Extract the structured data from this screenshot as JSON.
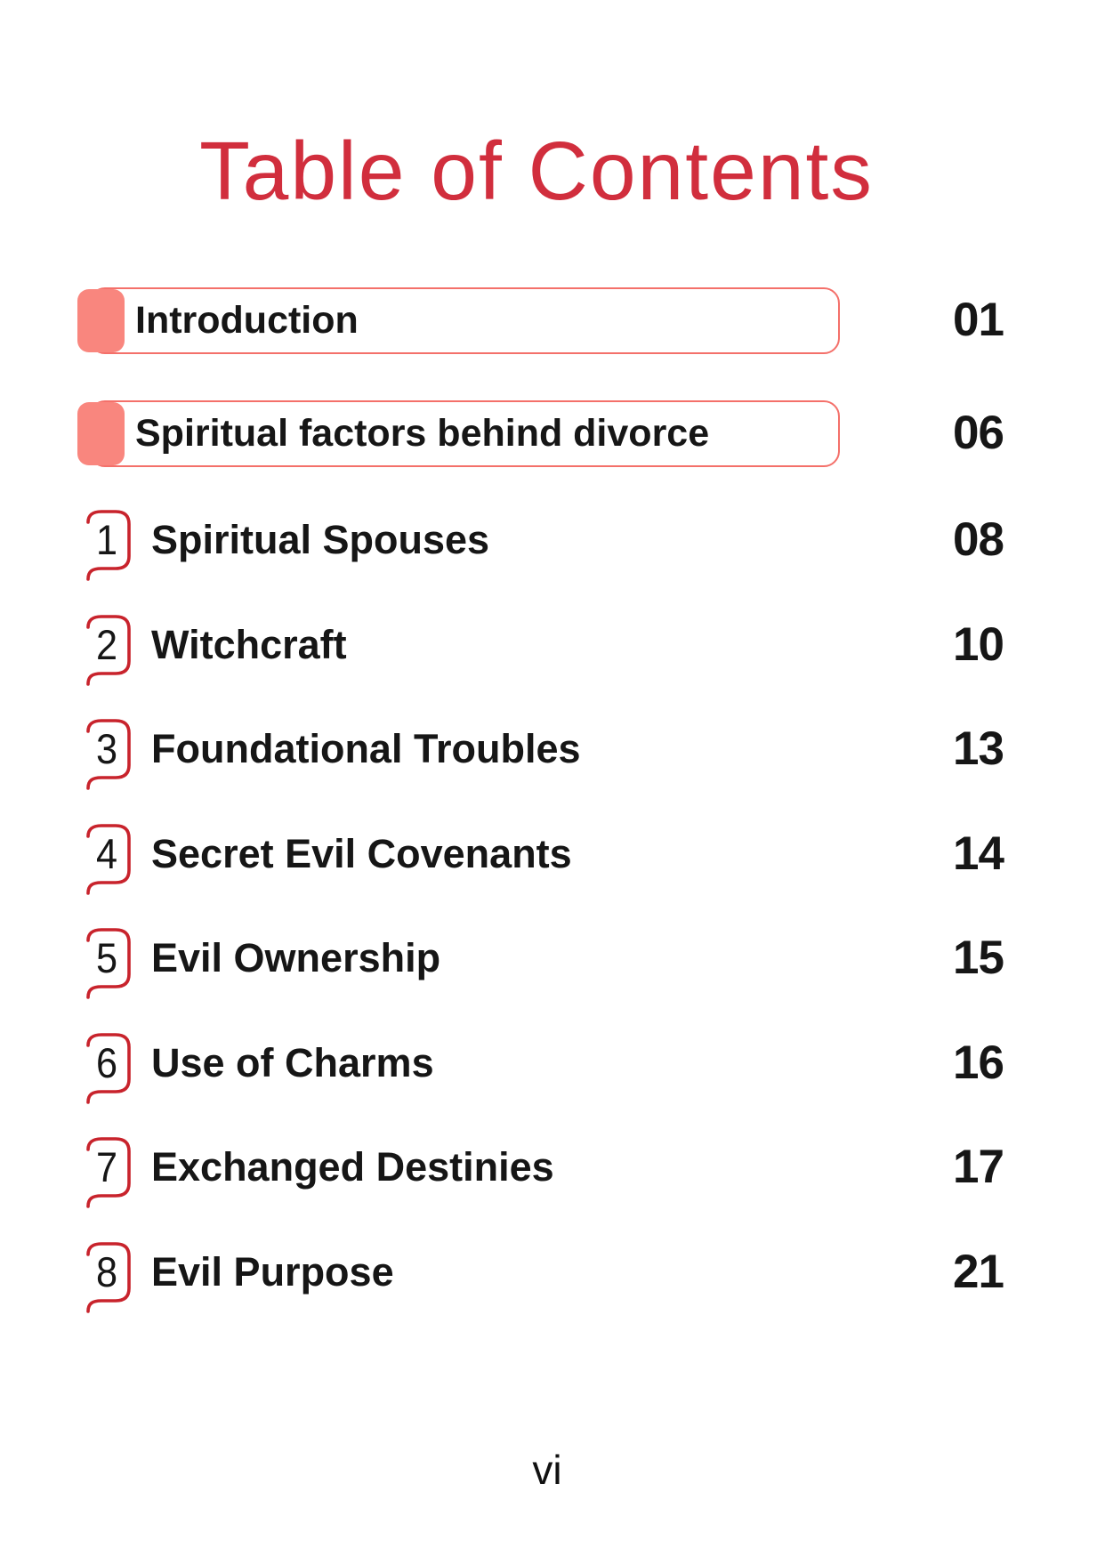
{
  "page": {
    "title": "Table of Contents",
    "page_number": "vi"
  },
  "colors": {
    "title_red": "#d12e3d",
    "bracket_red": "#c8232c",
    "tab_salmon": "#f9867e",
    "box_border": "#f4706a",
    "text_black": "#161616"
  },
  "toc": {
    "sections": [
      {
        "label": "Introduction",
        "page": "01"
      },
      {
        "label": "Spiritual factors behind divorce",
        "page": "06"
      }
    ],
    "chapters": [
      {
        "number": "1",
        "label": "Spiritual Spouses",
        "page": "08"
      },
      {
        "number": "2",
        "label": "Witchcraft",
        "page": "10"
      },
      {
        "number": "3",
        "label": "Foundational Troubles",
        "page": "13"
      },
      {
        "number": "4",
        "label": "Secret Evil Covenants",
        "page": "14"
      },
      {
        "number": "5",
        "label": "Evil Ownership",
        "page": "15"
      },
      {
        "number": "6",
        "label": "Use of Charms",
        "page": "16"
      },
      {
        "number": "7",
        "label": "Exchanged Destinies",
        "page": "17"
      },
      {
        "number": "8",
        "label": "Evil Purpose",
        "page": "21"
      }
    ]
  }
}
